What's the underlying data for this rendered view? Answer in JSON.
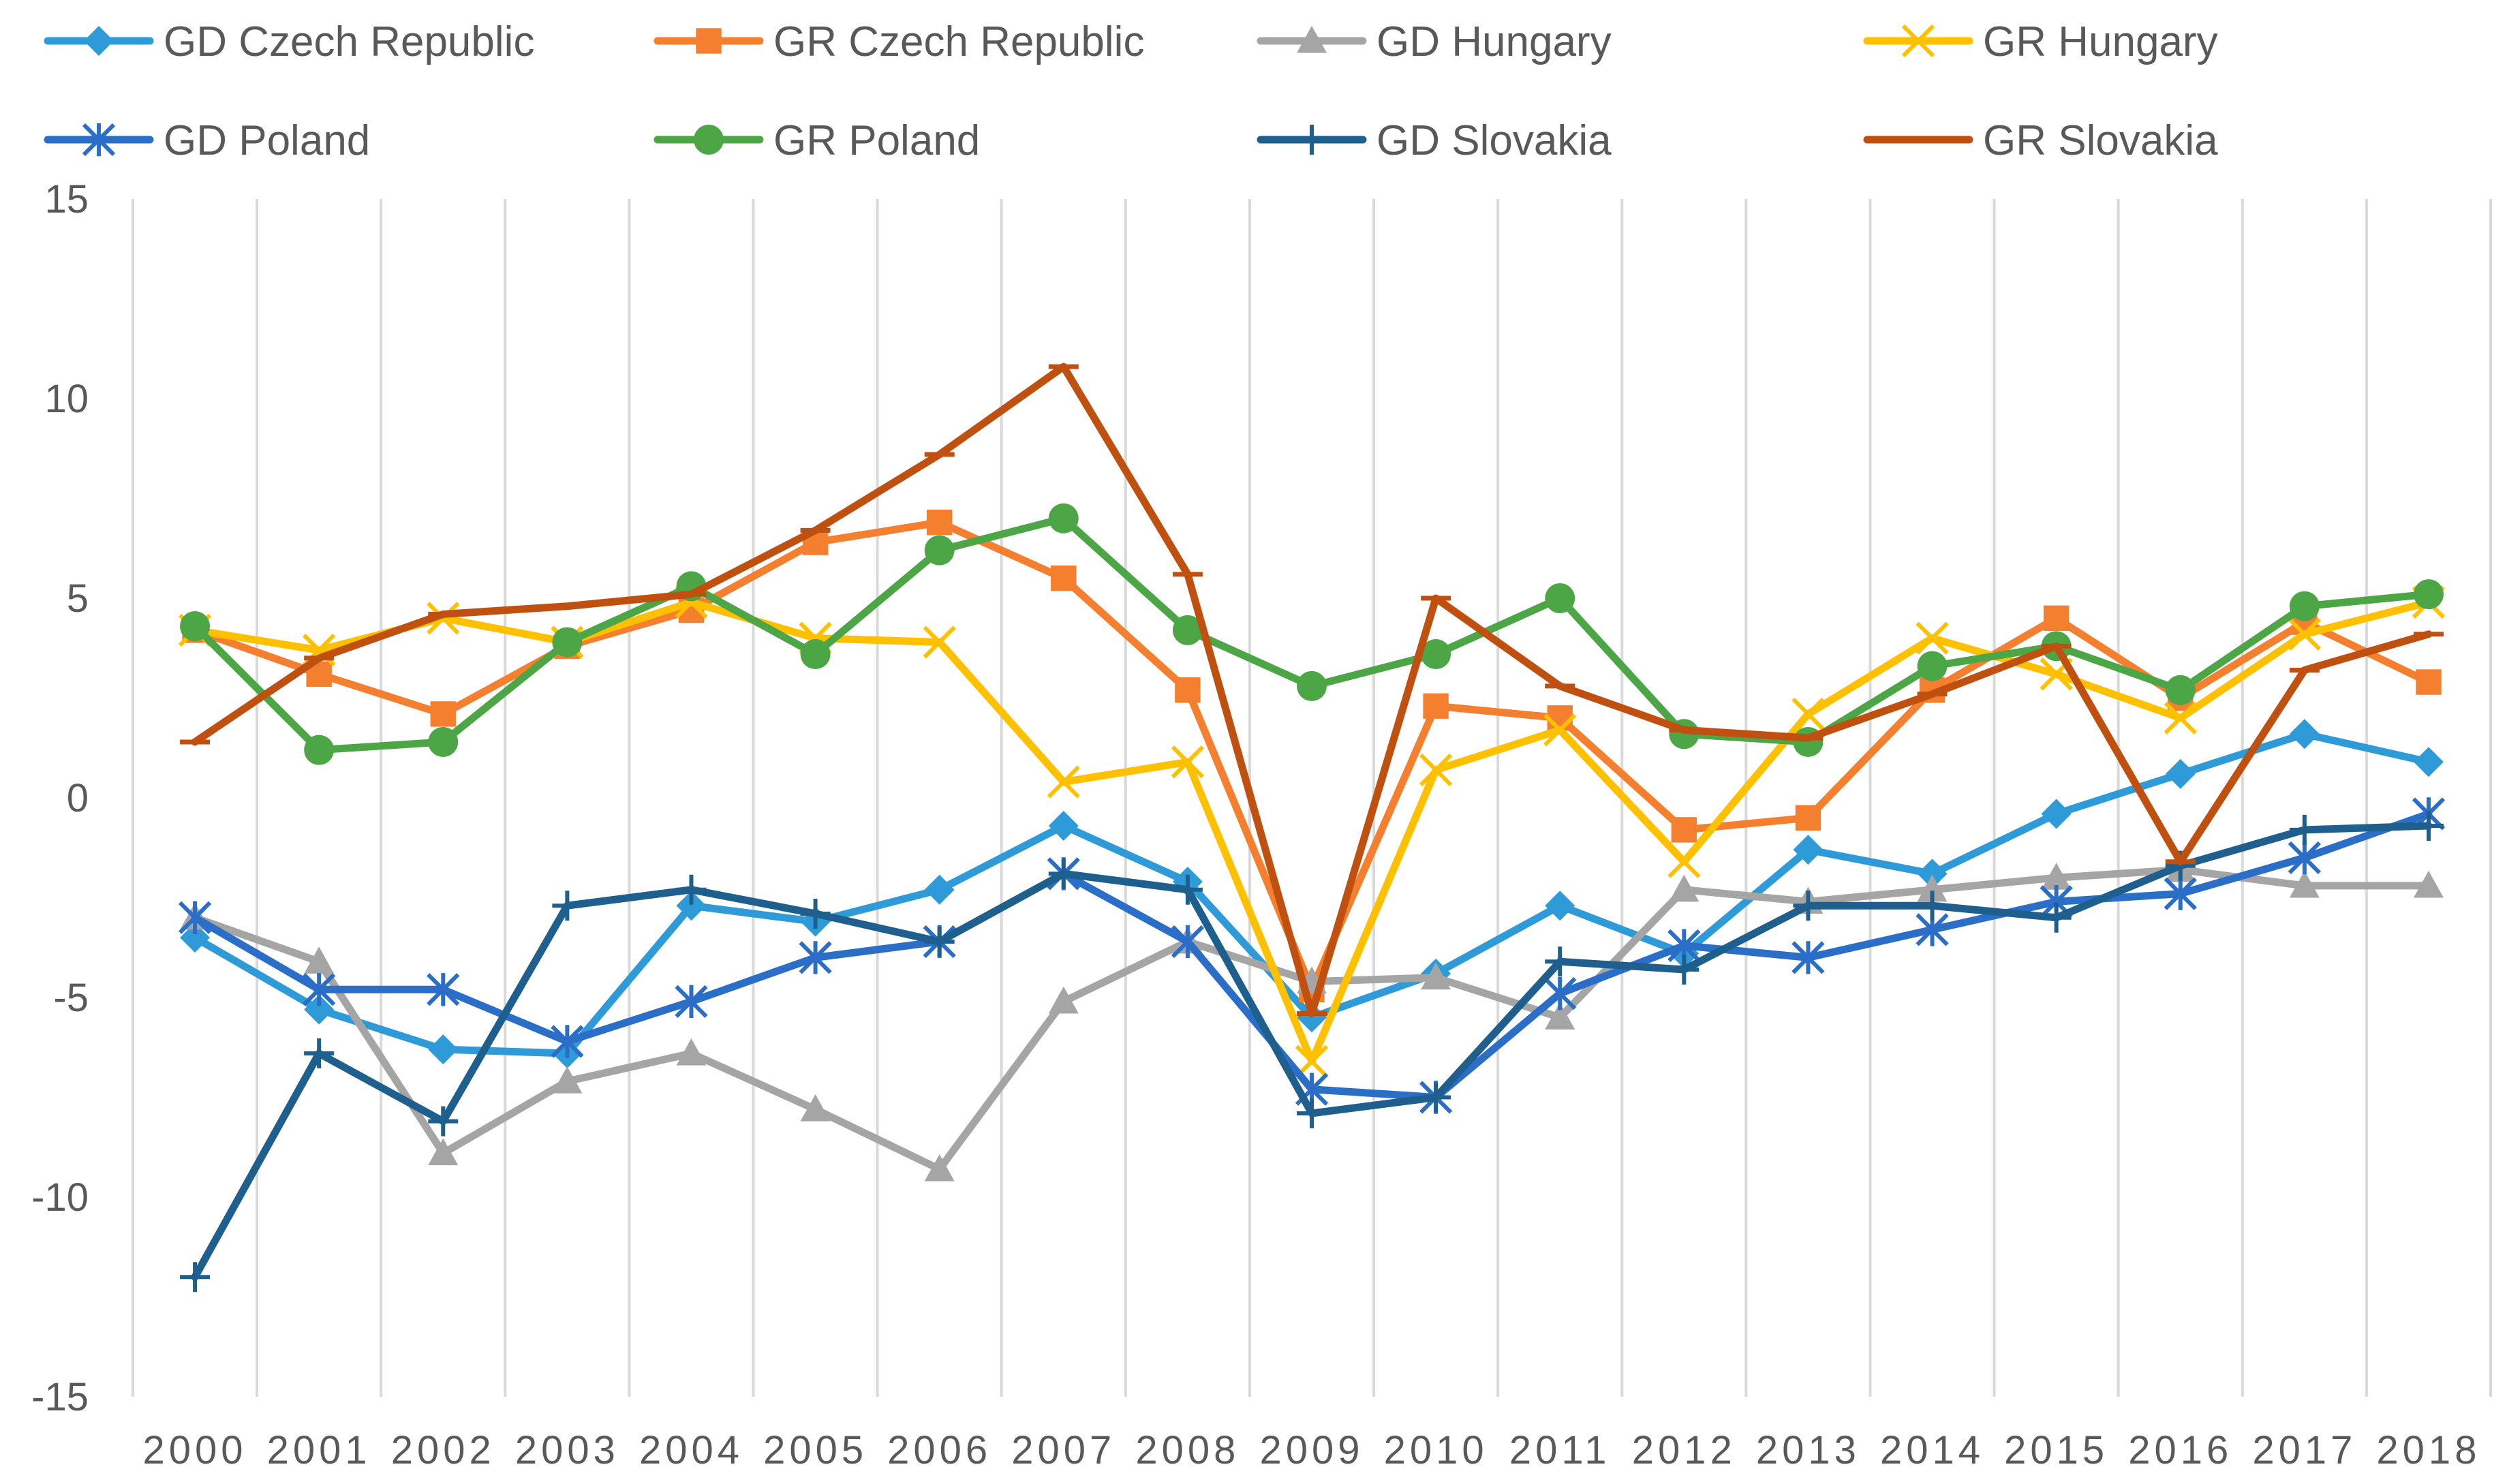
{
  "chart_data": {
    "type": "line",
    "title": "",
    "xlabel": "",
    "ylabel": "",
    "ylim": [
      -15,
      15
    ],
    "yticks": [
      15,
      10,
      5,
      0,
      -5,
      -10,
      -15
    ],
    "ytick_labels": [
      "15",
      "10",
      "5",
      "0",
      "-5",
      "-10",
      "-15"
    ],
    "grid": "vertical",
    "legend": "top",
    "categories": [
      "2000",
      "2001",
      "2002",
      "2003",
      "2004",
      "2005",
      "2006",
      "2007",
      "2008",
      "2009",
      "2010",
      "2011",
      "2012",
      "2013",
      "2014",
      "2015",
      "2016",
      "2017",
      "2018"
    ],
    "series": [
      {
        "name": "GD Czech Republic",
        "color": "#2E9BD8",
        "marker": "diamond",
        "values": [
          -3.5,
          -5.3,
          -6.3,
          -6.4,
          -2.7,
          -3.1,
          -2.3,
          -0.7,
          -2.1,
          -5.5,
          -4.4,
          -2.7,
          -3.9,
          -1.3,
          -1.9,
          -0.4,
          0.6,
          1.6,
          0.9
        ]
      },
      {
        "name": "GR Czech Republic",
        "color": "#F47F2F",
        "marker": "square",
        "values": [
          4.2,
          3.1,
          2.1,
          3.8,
          4.7,
          6.4,
          6.9,
          5.5,
          2.7,
          -4.8,
          2.3,
          2.0,
          -0.8,
          -0.5,
          2.7,
          4.5,
          2.5,
          4.4,
          2.9
        ]
      },
      {
        "name": "GD Hungary",
        "color": "#A5A5A5",
        "marker": "triangle",
        "values": [
          -3.0,
          -4.1,
          -8.9,
          -7.1,
          -6.4,
          -7.8,
          -9.3,
          -5.1,
          -3.6,
          -4.6,
          -4.5,
          -5.5,
          -2.3,
          -2.6,
          -2.3,
          -2.0,
          -1.8,
          -2.2,
          -2.2
        ]
      },
      {
        "name": "GR Hungary",
        "color": "#FFC000",
        "marker": "x",
        "values": [
          4.2,
          3.7,
          4.5,
          3.9,
          4.9,
          4.0,
          3.9,
          0.4,
          0.9,
          -6.6,
          0.7,
          1.7,
          -1.6,
          2.1,
          4.0,
          3.1,
          2.0,
          4.1,
          4.9
        ]
      },
      {
        "name": "GD Poland",
        "color": "#2A6EC7",
        "marker": "asterisk",
        "values": [
          -3.0,
          -4.8,
          -4.8,
          -6.1,
          -5.1,
          -4.0,
          -3.6,
          -1.9,
          -3.6,
          -7.3,
          -7.5,
          -4.9,
          -3.7,
          -4.0,
          -3.3,
          -2.6,
          -2.4,
          -1.5,
          -0.4
        ]
      },
      {
        "name": "GR Poland",
        "color": "#4CA646",
        "marker": "circle",
        "values": [
          4.3,
          1.2,
          1.4,
          3.9,
          5.3,
          3.6,
          6.2,
          7.0,
          4.2,
          2.8,
          3.6,
          5.0,
          1.6,
          1.4,
          3.3,
          3.8,
          2.7,
          4.8,
          5.1
        ]
      },
      {
        "name": "GD Slovakia",
        "color": "#1E5F8E",
        "marker": "plus",
        "values": [
          -12.0,
          -6.4,
          -8.1,
          -2.7,
          -2.3,
          -2.9,
          -3.6,
          -1.9,
          -2.3,
          -7.9,
          -7.5,
          -4.1,
          -4.3,
          -2.7,
          -2.7,
          -3.0,
          -1.7,
          -0.8,
          -0.7
        ]
      },
      {
        "name": "GR Slovakia",
        "color": "#C0500F",
        "marker": "dash",
        "values": [
          1.4,
          3.5,
          4.6,
          4.8,
          5.1,
          6.7,
          8.6,
          10.8,
          5.6,
          -5.4,
          5.0,
          2.8,
          1.7,
          1.5,
          2.6,
          3.8,
          -1.6,
          3.2,
          4.1
        ]
      }
    ]
  }
}
